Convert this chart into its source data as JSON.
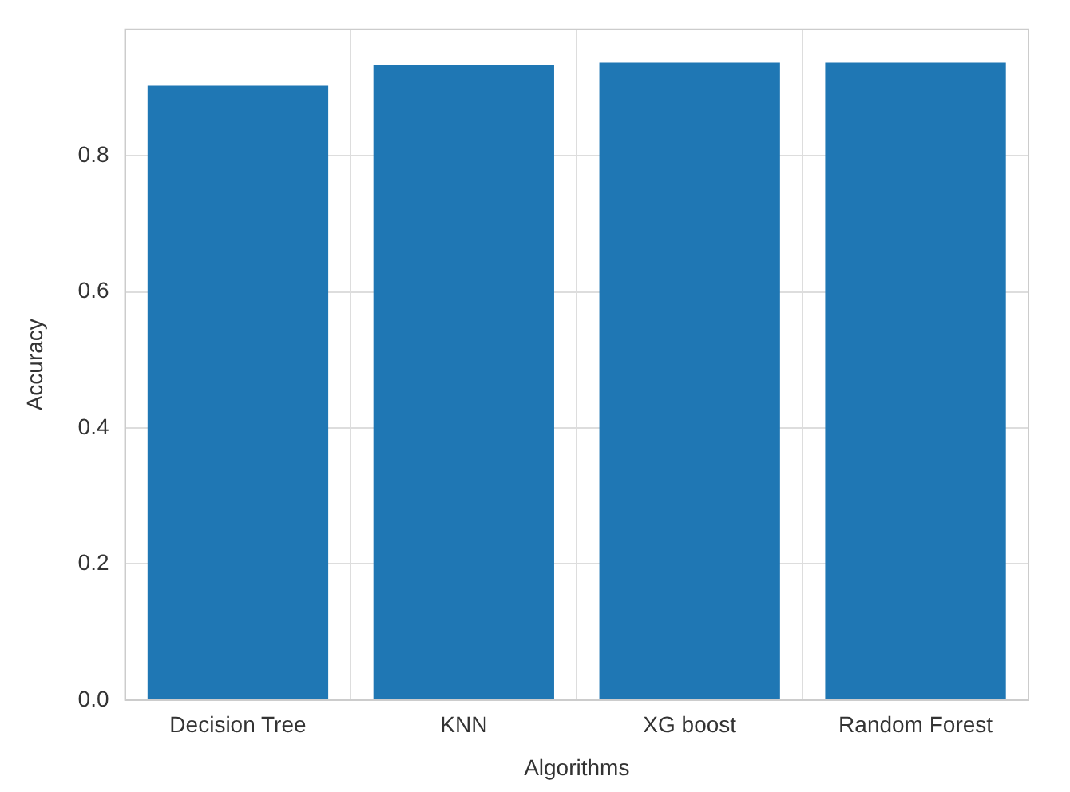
{
  "chart_data": {
    "type": "bar",
    "xlabel": "Algorithms",
    "ylabel": "Accuracy",
    "categories": [
      "Decision Tree",
      "KNN",
      "XG boost",
      "Random Forest"
    ],
    "values": [
      0.903,
      0.933,
      0.937,
      0.937
    ],
    "color": "#1f77b4",
    "ylim": [
      0,
      0.986
    ],
    "yticks": [
      {
        "value": 0,
        "label": "0.0"
      },
      {
        "value": 0.2,
        "label": "0.2"
      },
      {
        "value": 0.4,
        "label": "0.4"
      },
      {
        "value": 0.6,
        "label": "0.6"
      },
      {
        "value": 0.8,
        "label": "0.8"
      }
    ],
    "grid": true,
    "legend": false
  }
}
